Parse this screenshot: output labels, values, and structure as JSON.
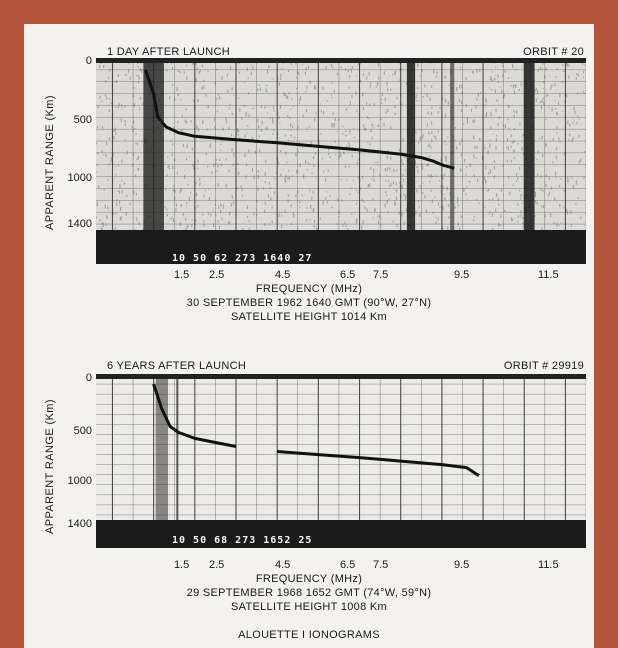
{
  "figure_title": "ALOUETTE I IONOGRAMS",
  "colors": {
    "frame": "#b4533a",
    "paper": "#f3f2ee",
    "ink": "#1a1a1a",
    "bar": "#1b1b1b"
  },
  "chart_data": [
    {
      "type": "line",
      "title_left": "1 DAY AFTER LAUNCH",
      "title_right": "ORBIT # 20",
      "ylabel": "APPARENT RANGE (Km)",
      "xlabel": "FREQUENCY (MHz)",
      "caption_lines": [
        "30 SEPTEMBER 1962 1640 GMT (90°W, 27°N)",
        "SATELLITE HEIGHT 1014 Km"
      ],
      "y_ticks": [
        "0",
        "500",
        "1000",
        "1400"
      ],
      "y_tick_values": [
        0,
        500,
        1000,
        1400
      ],
      "x_ticks": [
        "1.5",
        "2.5",
        "4.5",
        "6.5",
        "7.5",
        "9.5",
        "11.5"
      ],
      "x_tick_values": [
        1.5,
        2.5,
        4.5,
        6.5,
        7.5,
        9.5,
        11.5
      ],
      "ylim": [
        0,
        1450
      ],
      "xlim": [
        0.6,
        12.5
      ],
      "y_inverted": true,
      "bar_code": "10  50  62  273   1640  27",
      "series": [
        {
          "x": [
            1.8,
            2.0,
            2.1,
            2.3,
            2.6,
            3.0,
            4.0,
            5.0,
            6.0,
            7.0,
            8.0,
            8.5
          ],
          "y": [
            100,
            300,
            500,
            580,
            630,
            660,
            690,
            715,
            745,
            775,
            810,
            840
          ]
        },
        {
          "x": [
            8.5,
            8.8,
            9.0,
            9.3
          ],
          "y": [
            840,
            870,
            900,
            930
          ]
        }
      ]
    },
    {
      "type": "line",
      "title_left": "6 YEARS AFTER LAUNCH",
      "title_right": "ORBIT # 29919",
      "ylabel": "APPARENT RANGE (Km)",
      "xlabel": "FREQUENCY (MHz)",
      "caption_lines": [
        "29 SEPTEMBER 1968 1652 GMT (74°W, 59°N)",
        "SATELLITE HEIGHT 1008 Km"
      ],
      "y_ticks": [
        "0",
        "500",
        "1000",
        "1400"
      ],
      "y_tick_values": [
        0,
        500,
        1000,
        1400
      ],
      "x_ticks": [
        "1.5",
        "2.5",
        "4.5",
        "6.5",
        "7.5",
        "9.5",
        "11.5"
      ],
      "x_tick_values": [
        1.5,
        2.5,
        4.5,
        6.5,
        7.5,
        9.5,
        11.5
      ],
      "ylim": [
        0,
        1450
      ],
      "xlim": [
        0.6,
        12.5
      ],
      "y_inverted": true,
      "bar_code": "10  50  68  273   1652  25",
      "series": [
        {
          "x": [
            2.0,
            2.2,
            2.4,
            2.6,
            3.0,
            3.5,
            4.0
          ],
          "y": [
            100,
            350,
            520,
            580,
            640,
            680,
            720
          ]
        },
        {
          "x": [
            5.0,
            6.0,
            7.0,
            8.0,
            9.0,
            9.6,
            9.9
          ],
          "y": [
            770,
            800,
            830,
            865,
            900,
            930,
            1010
          ]
        }
      ]
    }
  ]
}
